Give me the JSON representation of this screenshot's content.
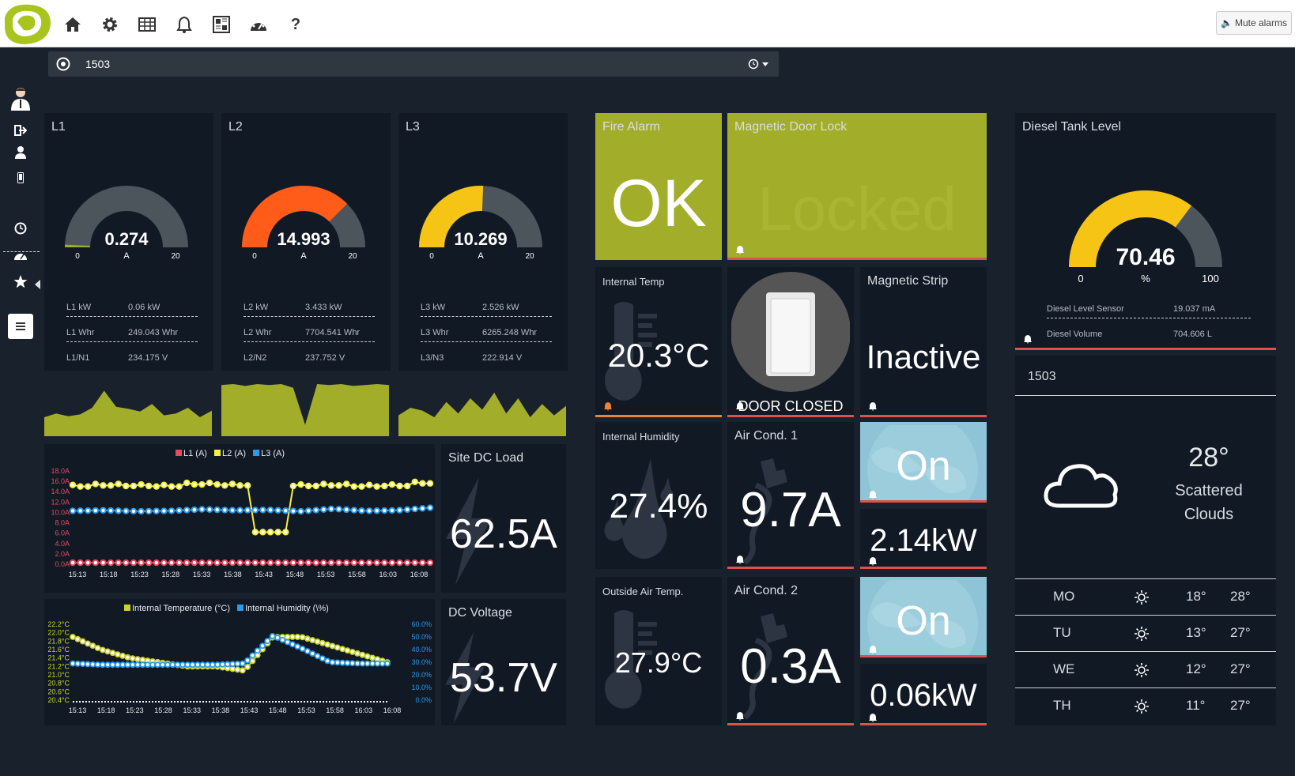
{
  "topbar": {
    "mute_label": "Mute alarms",
    "nav_icons": [
      "home-icon",
      "gear-icon",
      "table-icon",
      "bell-icon",
      "dashboard-grid-icon",
      "speedometer-icon",
      "help-icon"
    ]
  },
  "search": {
    "value": "1503"
  },
  "phases": [
    {
      "title": "L1",
      "value": "0.274",
      "unit": "A",
      "min": "0",
      "max": "20",
      "fraction": 0.0137,
      "color": "#9aaa2a",
      "rows": [
        [
          "L1 kW",
          "0.06 kW"
        ],
        [
          "L1 Whr",
          "249.043 Whr"
        ],
        [
          "L1/N1",
          "234.175 V"
        ]
      ]
    },
    {
      "title": "L2",
      "value": "14.993",
      "unit": "A",
      "min": "0",
      "max": "20",
      "fraction": 0.75,
      "color": "#ff5c1a",
      "rows": [
        [
          "L2 kW",
          "3.433 kW"
        ],
        [
          "L2 Whr",
          "7704.541 Whr"
        ],
        [
          "L2/N2",
          "237.752 V"
        ]
      ]
    },
    {
      "title": "L3",
      "value": "10.269",
      "unit": "A",
      "min": "0",
      "max": "20",
      "fraction": 0.513,
      "color": "#f5c414",
      "rows": [
        [
          "L3 kW",
          "2.526 kW"
        ],
        [
          "L3 Whr",
          "6265.248 Whr"
        ],
        [
          "L3/N3",
          "222.914 V"
        ]
      ]
    }
  ],
  "fire_alarm": {
    "title": "Fire Alarm",
    "value": "OK"
  },
  "door_lock": {
    "title": "Magnetic Door Lock",
    "value": "Locked"
  },
  "internal_temp": {
    "title": "Internal Temp",
    "value": "20.3°C"
  },
  "door": {
    "value": "DOOR CLOSED"
  },
  "magnetic_strip": {
    "title": "Magnetic Strip",
    "value": "Inactive"
  },
  "internal_humidity": {
    "title": "Internal Humidity",
    "value": "27.4%"
  },
  "air_cond_1": {
    "title": "Air Cond. 1",
    "value": "9.7A",
    "state": "On",
    "power": "2.14kW"
  },
  "outside_temp": {
    "title": "Outside Air Temp.",
    "value": "27.9°C"
  },
  "air_cond_2": {
    "title": "Air Cond. 2",
    "value": "0.3A",
    "state": "On",
    "power": "0.06kW"
  },
  "site_dc_load": {
    "title": "Site DC Load",
    "value": "62.5A"
  },
  "dc_voltage": {
    "title": "DC Voltage",
    "value": "53.7V"
  },
  "diesel": {
    "title": "Diesel Tank Level",
    "value": "70.46",
    "unit": "%",
    "min": "0",
    "max": "100",
    "fraction": 0.7046,
    "rows": [
      [
        "Diesel Level Sensor",
        "19.037 mA"
      ],
      [
        "Diesel Volume",
        "704.606 L"
      ]
    ]
  },
  "weather": {
    "location": "1503",
    "temp": "28°",
    "condition_line1": "Scattered",
    "condition_line2": "Clouds",
    "forecast": [
      {
        "day": "MO",
        "low": "18°",
        "high": "28°"
      },
      {
        "day": "TU",
        "low": "13°",
        "high": "27°"
      },
      {
        "day": "WE",
        "low": "12°",
        "high": "27°"
      },
      {
        "day": "TH",
        "low": "11°",
        "high": "27°"
      }
    ]
  },
  "colors": {
    "olive": "#a2ad2a",
    "light_blue": "#8fc4d6",
    "red_bar": "#d9534f",
    "orange_bar": "#e8843a",
    "yellow": "#f5f13a",
    "blue": "#2b9ae8",
    "red": "#e84a5f"
  },
  "chart_data": [
    {
      "type": "line",
      "title": "",
      "legend": [
        "L1 (A)",
        "L2 (A)",
        "L3 (A)"
      ],
      "x": [
        "15:13",
        "15:18",
        "15:23",
        "15:28",
        "15:33",
        "15:38",
        "15:43",
        "15:48",
        "15:53",
        "15:58",
        "16:03",
        "16:08"
      ],
      "yticks": [
        "0.0A",
        "2.0A",
        "4.0A",
        "6.0A",
        "8.0A",
        "10.0A",
        "12.0A",
        "14.0A",
        "16.0A",
        "18.0A"
      ],
      "ylim": [
        0,
        18
      ],
      "series": [
        {
          "name": "L1 (A)",
          "values": [
            0.3,
            0.3,
            0.3,
            0.3,
            0.3,
            0.3,
            0.3,
            0.3,
            0.3,
            0.3,
            0.3,
            0.3
          ]
        },
        {
          "name": "L2 (A)",
          "values": [
            15.0,
            15.2,
            15.1,
            15.0,
            15.4,
            15.2,
            6.2,
            15.1,
            15.2,
            15.0,
            15.1,
            15.6
          ]
        },
        {
          "name": "L3 (A)",
          "values": [
            10.3,
            10.4,
            10.2,
            10.3,
            10.6,
            10.4,
            10.5,
            10.2,
            10.7,
            10.3,
            10.4,
            10.9
          ]
        }
      ]
    },
    {
      "type": "line",
      "title": "",
      "legend": [
        "Internal Temperature (°C)",
        "Internal Humidity (\\%)"
      ],
      "x": [
        "15:13",
        "15:18",
        "15:23",
        "15:28",
        "15:33",
        "15:38",
        "15:43",
        "15:48",
        "15:53",
        "15:58",
        "16:03",
        "16:08"
      ],
      "yticks_left": [
        "20.4°C",
        "20.6°C",
        "20.8°C",
        "21.0°C",
        "21.2°C",
        "21.4°C",
        "21.6°C",
        "21.8°C",
        "22.0°C",
        "22.2°C"
      ],
      "yticks_right": [
        "0.0%",
        "10.0%",
        "20.0%",
        "30.0%",
        "40.0%",
        "50.0%",
        "60.0%"
      ],
      "series": [
        {
          "name": "Internal Temperature (°C)",
          "values": [
            21.9,
            21.6,
            21.4,
            21.3,
            21.2,
            21.2,
            21.1,
            21.9,
            21.9,
            21.7,
            21.5,
            21.3
          ]
        },
        {
          "name": "Internal Humidity (\\%)",
          "values": [
            29,
            28,
            28,
            28,
            28,
            28,
            29,
            51,
            41,
            30,
            29,
            29
          ]
        }
      ]
    },
    {
      "type": "area",
      "values": [
        20,
        24,
        21,
        23,
        30,
        48,
        31,
        29,
        26,
        34,
        22,
        24,
        30,
        20,
        27
      ]
    },
    {
      "type": "area",
      "values": [
        54,
        55,
        53,
        55,
        54,
        55,
        51,
        12,
        55,
        54,
        55,
        53,
        54,
        55,
        54
      ]
    },
    {
      "type": "area",
      "values": [
        22,
        30,
        27,
        20,
        36,
        24,
        40,
        28,
        46,
        24,
        40,
        20,
        34,
        22,
        32
      ]
    }
  ]
}
